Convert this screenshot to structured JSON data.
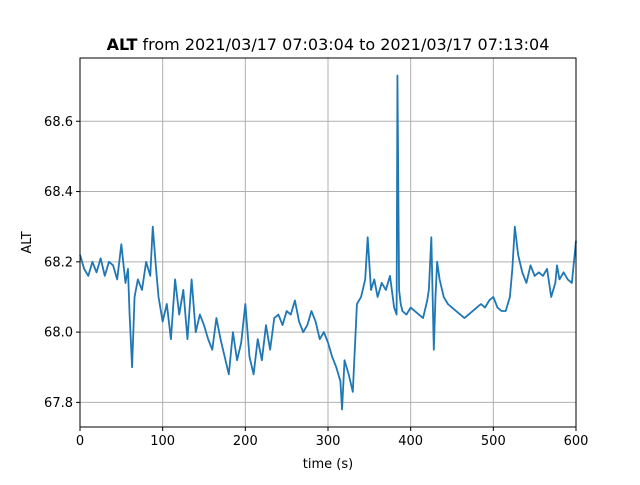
{
  "chart_data": {
    "type": "line",
    "title": {
      "variable": "ALT",
      "rest": " from 2021/03/17 07:03:04 to 2021/03/17 07:13:04"
    },
    "xlabel": "time (s)",
    "ylabel": "ALT",
    "xlim": [
      0,
      600
    ],
    "ylim": [
      67.73,
      68.78
    ],
    "xticks": [
      0,
      100,
      200,
      300,
      400,
      500,
      600
    ],
    "yticks": [
      67.8,
      68.0,
      68.2,
      68.4,
      68.6
    ],
    "ytick_labels": [
      "67.8",
      "68.0",
      "68.2",
      "68.4",
      "68.6"
    ],
    "grid": true,
    "series": [
      {
        "color": "#1f77b4",
        "x": [
          0,
          5,
          10,
          15,
          20,
          25,
          30,
          35,
          40,
          45,
          50,
          55,
          58,
          60,
          63,
          66,
          70,
          75,
          80,
          85,
          88,
          92,
          95,
          100,
          105,
          110,
          115,
          120,
          125,
          130,
          135,
          140,
          145,
          150,
          155,
          160,
          165,
          170,
          175,
          180,
          185,
          190,
          195,
          200,
          205,
          210,
          215,
          220,
          225,
          230,
          235,
          240,
          245,
          250,
          255,
          260,
          265,
          270,
          275,
          280,
          285,
          290,
          295,
          300,
          305,
          310,
          315,
          317,
          320,
          325,
          330,
          335,
          340,
          345,
          348,
          352,
          356,
          360,
          365,
          370,
          375,
          380,
          383,
          384,
          386,
          388,
          390,
          395,
          400,
          405,
          410,
          415,
          420,
          422,
          425,
          428,
          430,
          432,
          435,
          440,
          445,
          450,
          455,
          460,
          465,
          470,
          475,
          480,
          485,
          490,
          495,
          500,
          505,
          510,
          515,
          520,
          523,
          526,
          530,
          535,
          540,
          545,
          550,
          555,
          560,
          565,
          570,
          575,
          577,
          580,
          585,
          590,
          595,
          600
        ],
        "y": [
          68.22,
          68.18,
          68.16,
          68.2,
          68.17,
          68.21,
          68.16,
          68.2,
          68.19,
          68.15,
          68.25,
          68.14,
          68.18,
          68.05,
          67.9,
          68.1,
          68.15,
          68.12,
          68.2,
          68.16,
          68.3,
          68.18,
          68.1,
          68.03,
          68.08,
          67.98,
          68.15,
          68.05,
          68.12,
          67.98,
          68.15,
          68.0,
          68.05,
          68.02,
          67.98,
          67.95,
          68.04,
          67.98,
          67.93,
          67.88,
          68.0,
          67.92,
          67.97,
          68.08,
          67.93,
          67.88,
          67.98,
          67.92,
          68.02,
          67.95,
          68.04,
          68.05,
          68.02,
          68.06,
          68.05,
          68.09,
          68.03,
          68.0,
          68.02,
          68.06,
          68.03,
          67.98,
          68.0,
          67.97,
          67.93,
          67.9,
          67.86,
          67.78,
          67.92,
          67.88,
          67.83,
          68.08,
          68.1,
          68.15,
          68.27,
          68.12,
          68.15,
          68.1,
          68.14,
          68.12,
          68.16,
          68.07,
          68.05,
          68.73,
          68.12,
          68.08,
          68.06,
          68.05,
          68.07,
          68.06,
          68.05,
          68.04,
          68.09,
          68.12,
          68.27,
          67.95,
          68.1,
          68.2,
          68.15,
          68.1,
          68.08,
          68.07,
          68.06,
          68.05,
          68.04,
          68.05,
          68.06,
          68.07,
          68.08,
          68.07,
          68.09,
          68.1,
          68.07,
          68.06,
          68.06,
          68.1,
          68.18,
          68.3,
          68.22,
          68.17,
          68.14,
          68.19,
          68.16,
          68.17,
          68.16,
          68.18,
          68.1,
          68.14,
          68.19,
          68.15,
          68.17,
          68.15,
          68.14,
          68.26
        ]
      }
    ]
  }
}
